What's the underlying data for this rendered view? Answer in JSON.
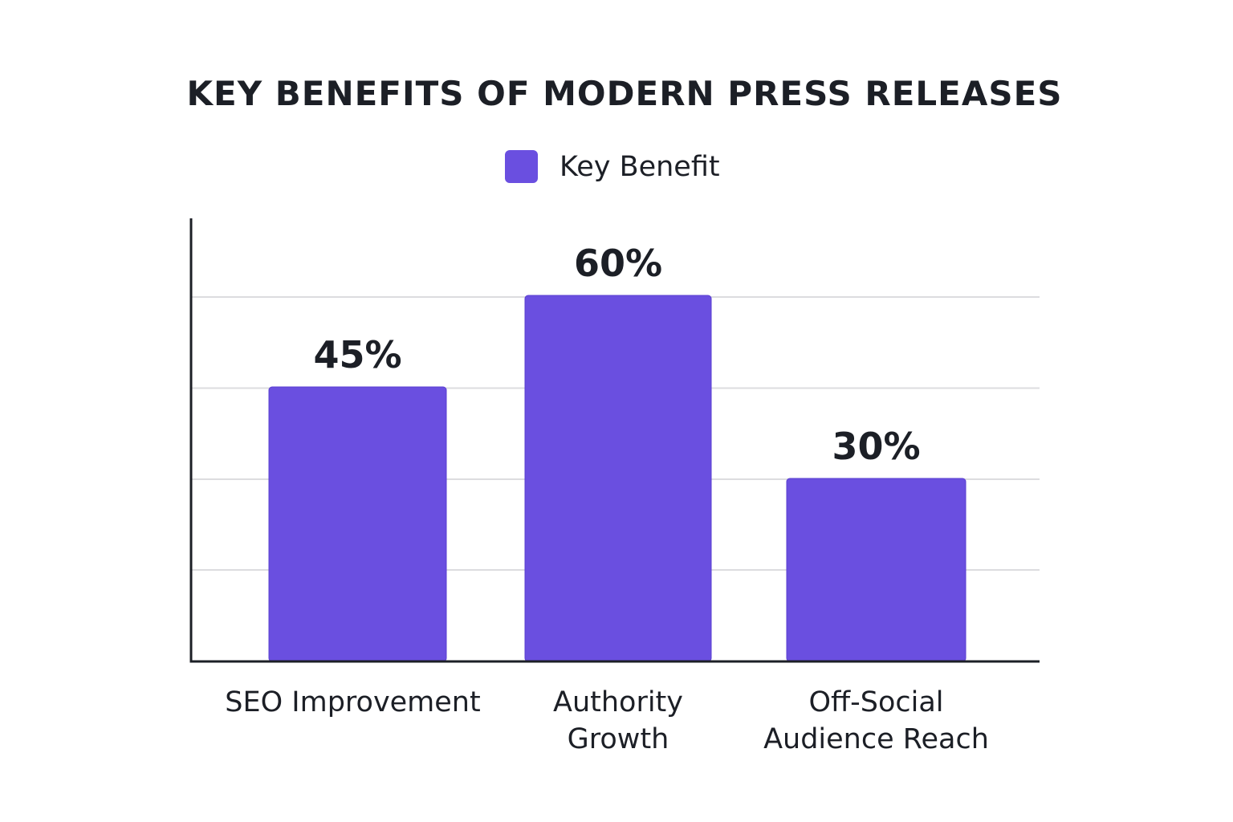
{
  "chart_data": {
    "type": "bar",
    "title": "KEY BENEFITS OF MODERN PRESS RELEASES",
    "categories": [
      "SEO Improvement",
      "Authority Growth",
      "Off-Social Audience Reach"
    ],
    "category_lines": [
      [
        "SEO Improvement"
      ],
      [
        "Authority",
        "Growth"
      ],
      [
        "Off-Social",
        "Audience Reach"
      ]
    ],
    "series": [
      {
        "name": "Key Benefit",
        "values": [
          45,
          60,
          30
        ],
        "color": "#6a4fe0"
      }
    ],
    "data_labels": [
      "45%",
      "60%",
      "30%"
    ],
    "xlabel": "",
    "ylabel": "",
    "ylim": [
      0,
      60
    ],
    "grid": true,
    "legend": "top-center"
  }
}
